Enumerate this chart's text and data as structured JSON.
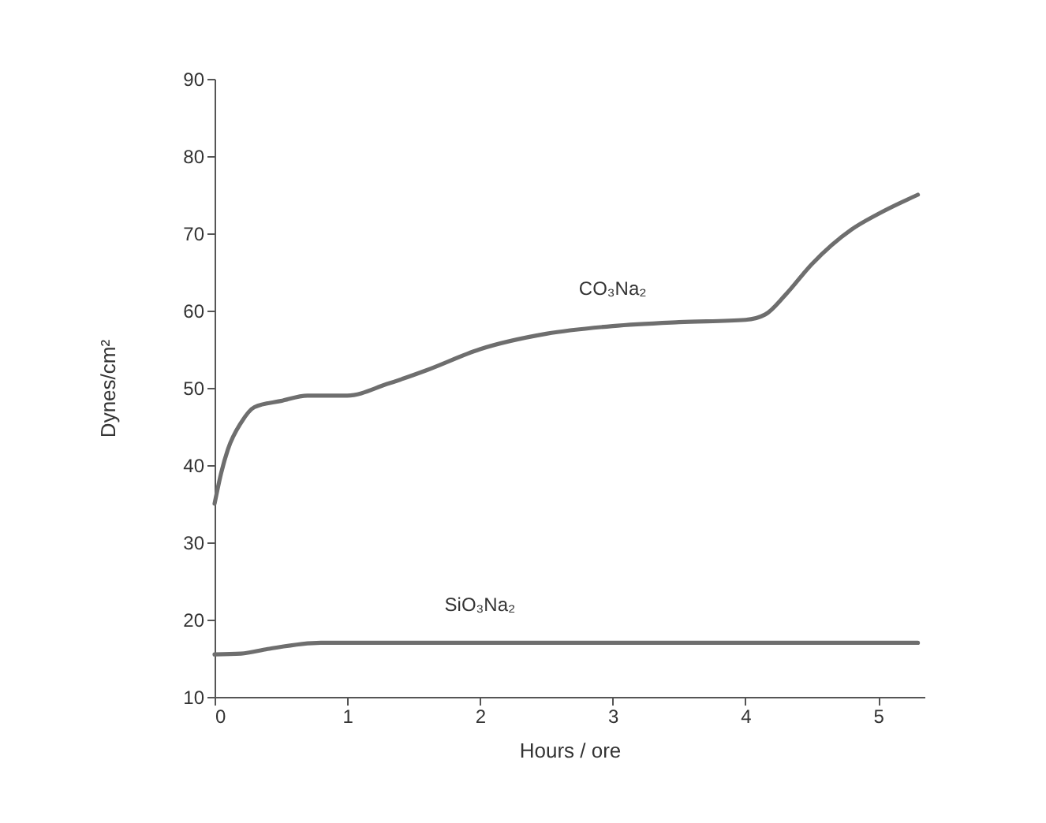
{
  "chart_data": {
    "type": "line",
    "xlabel": "Hours / ore",
    "ylabel": "Dynes/cm²",
    "xlim": [
      0,
      5.35
    ],
    "xticks": [
      0,
      1,
      2,
      3,
      4,
      5
    ],
    "ylim": [
      10,
      90
    ],
    "yticks": [
      10,
      20,
      30,
      40,
      50,
      60,
      70,
      80,
      90
    ],
    "grid": false,
    "legend": false,
    "marker": "none",
    "line_style": "solid",
    "series": [
      {
        "name": "CO₃Na₂",
        "color": "#6e6e6e",
        "x": [
          0,
          0.05,
          0.1,
          0.2,
          0.3,
          0.5,
          0.7,
          1.0,
          1.3,
          1.6,
          2.0,
          2.5,
          3.0,
          3.5,
          4.0,
          4.15,
          4.3,
          4.5,
          4.8,
          5.0,
          5.3
        ],
        "values": [
          35,
          39,
          42,
          45.5,
          47.5,
          48.3,
          49,
          49,
          50.5,
          52.3,
          55,
          57,
          58,
          58.5,
          58.8,
          59.5,
          62,
          66,
          70.5,
          72.5,
          75
        ]
      },
      {
        "name": "SiO₃Na₂",
        "color": "#6e6e6e",
        "x": [
          0,
          0.2,
          0.4,
          0.8,
          1.2,
          2,
          3,
          4,
          5.3
        ],
        "values": [
          15.5,
          15.6,
          16.2,
          17,
          17,
          17,
          17,
          17,
          17
        ]
      }
    ]
  }
}
